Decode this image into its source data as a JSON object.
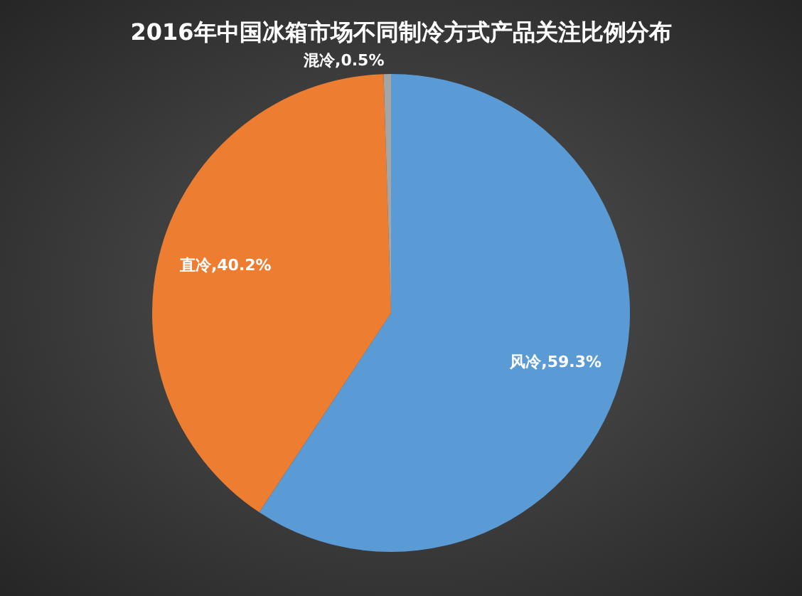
{
  "chart_data": {
    "type": "pie",
    "title": "2016年中国冰箱市场不同制冷方式产品关注比例分布",
    "categories": [
      "风冷",
      "直冷",
      "混冷"
    ],
    "values": [
      59.3,
      40.2,
      0.5
    ],
    "value_labels": [
      "59.3%",
      "40.2%",
      "0.5%"
    ],
    "colors": [
      "#5b9bd5",
      "#ed7d31",
      "#a5a5a5"
    ],
    "legend": false
  }
}
